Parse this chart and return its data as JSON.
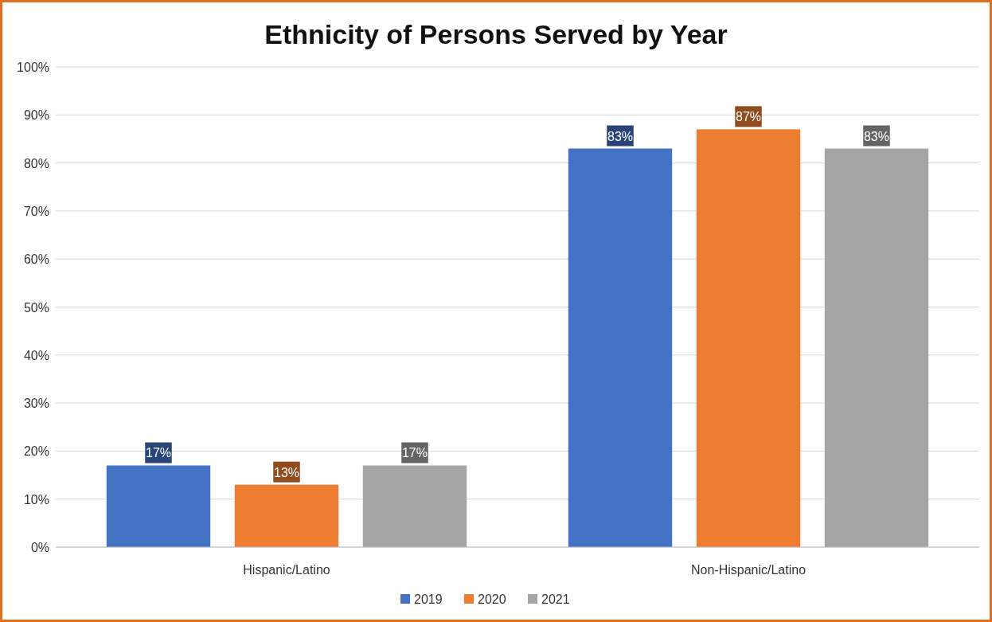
{
  "chart_data": {
    "type": "bar",
    "title": "Ethnicity of Persons Served by Year",
    "categories": [
      "Hispanic/Latino",
      "Non-Hispanic/Latino"
    ],
    "series": [
      {
        "name": "2019",
        "color": "#4472c4",
        "values": [
          17,
          83
        ],
        "value_labels": [
          "17%",
          "83%"
        ]
      },
      {
        "name": "2020",
        "color": "#ed7d31",
        "values": [
          13,
          87
        ],
        "value_labels": [
          "13%",
          "87%"
        ]
      },
      {
        "name": "2021",
        "color": "#a5a5a5",
        "values": [
          17,
          83
        ],
        "value_labels": [
          "17%",
          "83%"
        ]
      }
    ],
    "ylim": [
      0,
      100
    ],
    "yticks": [
      {
        "value": 0,
        "label": "0%"
      },
      {
        "value": 10,
        "label": "10%"
      },
      {
        "value": 20,
        "label": "20%"
      },
      {
        "value": 30,
        "label": "30%"
      },
      {
        "value": 40,
        "label": "40%"
      },
      {
        "value": 50,
        "label": "50%"
      },
      {
        "value": 60,
        "label": "60%"
      },
      {
        "value": 70,
        "label": "70%"
      },
      {
        "value": 80,
        "label": "80%"
      },
      {
        "value": 90,
        "label": "90%"
      },
      {
        "value": 100,
        "label": "100%"
      }
    ],
    "grid": "y",
    "legend": "bottom"
  }
}
